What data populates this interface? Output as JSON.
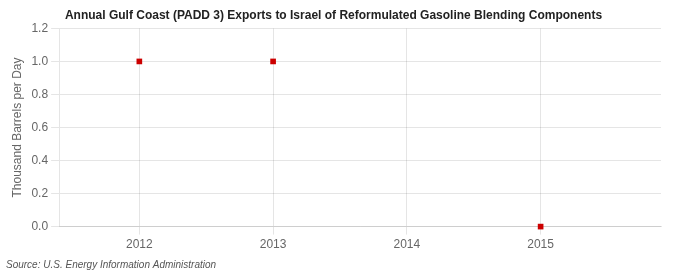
{
  "chart_data": {
    "type": "scatter",
    "title": "Annual Gulf Coast (PADD 3) Exports to Israel of Reformulated Gasoline Blending Components",
    "ylabel": "Thousand Barrels per Day",
    "annotation": "Source: U.S. Energy Information Administration",
    "x": [
      2012,
      2013,
      2015
    ],
    "values": [
      1.0,
      1.0,
      0.0
    ],
    "color": "#cc0000",
    "marker": "square",
    "xlim": [
      2011.4,
      2015.9
    ],
    "ylim": [
      0.0,
      1.2
    ],
    "xticks": [
      2012,
      2013,
      2014,
      2015
    ],
    "yticks": [
      {
        "value": 0.0,
        "label": "0.0"
      },
      0.2,
      0.4,
      0.6,
      0.8,
      {
        "value": 1.0,
        "label": "1.0"
      },
      1.2
    ],
    "grid": true
  }
}
